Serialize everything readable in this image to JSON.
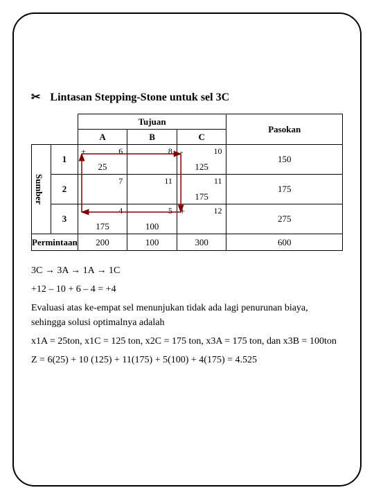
{
  "title": "Lintasan Stepping-Stone untuk sel 3C",
  "bullet": "✂",
  "headers": {
    "tujuan": "Tujuan",
    "pasokan": "Pasokan",
    "sumber": "Sumber",
    "permintaan": "Permintaan",
    "cols": [
      "A",
      "B",
      "C"
    ],
    "rows": [
      "1",
      "2",
      "3"
    ]
  },
  "cells": {
    "r1": {
      "A": {
        "cost": "6",
        "alloc": "25",
        "sign": "+"
      },
      "B": {
        "cost": "8",
        "alloc": "",
        "sign": ""
      },
      "C": {
        "cost": "10",
        "alloc": "125",
        "sign": "-"
      }
    },
    "r2": {
      "A": {
        "cost": "7",
        "alloc": "",
        "sign": ""
      },
      "B": {
        "cost": "11",
        "alloc": "",
        "sign": ""
      },
      "C": {
        "cost": "11",
        "alloc": "175",
        "sign": ""
      }
    },
    "r3": {
      "A": {
        "cost": "4",
        "alloc": "175",
        "sign": "-"
      },
      "B": {
        "cost": "5",
        "alloc": "100",
        "sign": ""
      },
      "C": {
        "cost": "12",
        "alloc": "",
        "sign": "+"
      }
    }
  },
  "supply": [
    "150",
    "175",
    "275"
  ],
  "demand": [
    "200",
    "100",
    "300"
  ],
  "total": "600",
  "path_color": "#800000",
  "body": {
    "p1": "3C → 3A → 1A → 1C",
    "p2": "+12 – 10 + 6 – 4 = +4",
    "p3": "Evaluasi atas ke-empat sel menunjukan tidak ada lagi penurunan biaya, sehingga solusi optimalnya adalah",
    "p4": "x1A = 25ton, x1C = 125 ton, x2C = 175 ton, x3A = 175 ton, dan x3B = 100ton",
    "p5": "Z = 6(25) + 10 (125) + 11(175) + 5(100) + 4(175) = 4.525"
  }
}
